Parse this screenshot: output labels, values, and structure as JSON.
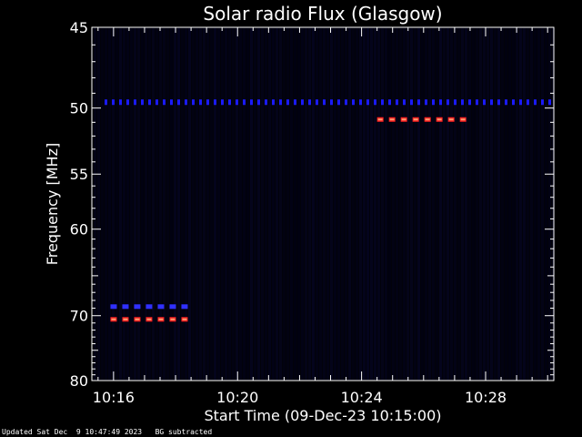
{
  "chart_data": {
    "type": "heatmap",
    "title": "Solar radio Flux (Glasgow)",
    "xlabel": "Start Time (09-Dec-23 10:15:00)",
    "ylabel": "Frequency [MHz]",
    "x_ticks": [
      "10:16",
      "10:20",
      "10:24",
      "10:28"
    ],
    "x_range_minutes": [
      15.3,
      30.2
    ],
    "x_tick_minutes": [
      16,
      20,
      24,
      28
    ],
    "y_ticks": [
      45,
      50,
      55,
      60,
      70,
      80
    ],
    "y_range": [
      45,
      80
    ],
    "y_scale": "reciprocal",
    "bursts": [
      {
        "color": "#3030ff",
        "freq": 68.8,
        "start_min": 15.9,
        "end_min": 18.5
      },
      {
        "color": "#ff2020",
        "freq": 70.5,
        "start_min": 15.9,
        "end_min": 18.5
      },
      {
        "color": "#ff2020",
        "freq": 50.8,
        "start_min": 24.5,
        "end_min": 27.3
      }
    ],
    "background_band": {
      "freq": 49.6,
      "color": "#1a1aff"
    }
  },
  "footer": {
    "updated": "Updated Sat Dec  9 10:47:49 2023",
    "note": "BG subtracted"
  }
}
